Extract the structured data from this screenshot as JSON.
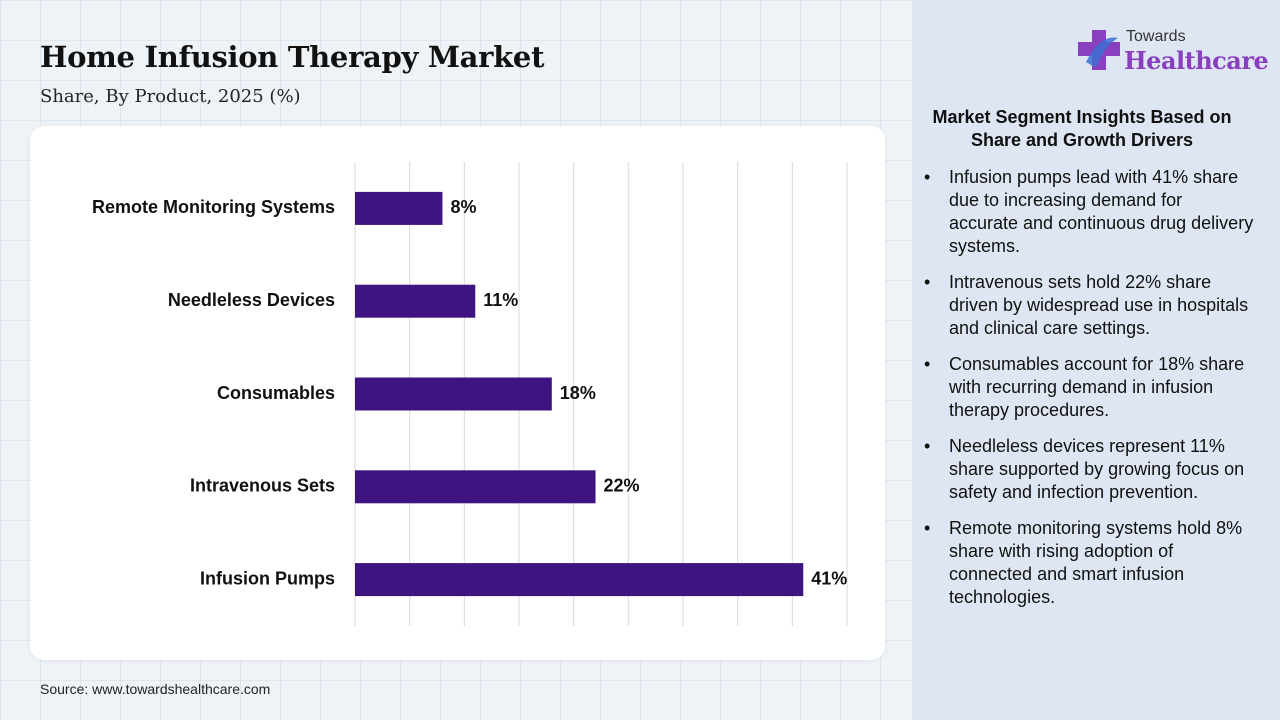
{
  "header": {
    "title": "Home Infusion Therapy Market",
    "subtitle": "Share, By Product, 2025 (%)"
  },
  "source": "Source: www.towardshealthcare.com",
  "brand": {
    "top": "Towards",
    "name": "Healthcare",
    "colors": {
      "primary": "#8a3fbf",
      "secondary": "#3b6fd4"
    }
  },
  "insights": {
    "title": "Market Segment Insights Based on Share and Growth Drivers",
    "bullet": "•",
    "items": [
      "Infusion pumps lead with 41% share due to increasing demand for accurate and continuous drug delivery systems.",
      "Intravenous sets hold 22% share driven by widespread use in hospitals and clinical care settings.",
      "Consumables account for 18% share with recurring demand in infusion therapy procedures.",
      "Needleless devices represent 11% share supported by growing focus on safety and infection prevention.",
      "Remote monitoring systems hold 8% share with rising adoption of connected and smart infusion technologies."
    ]
  },
  "chart_data": {
    "type": "bar",
    "orientation": "horizontal",
    "categories": [
      "Remote Monitoring Systems",
      "Needleless Devices",
      "Consumables",
      "Intravenous Sets",
      "Infusion Pumps"
    ],
    "values": [
      8,
      11,
      18,
      22,
      41
    ],
    "data_labels": [
      "8%",
      "11%",
      "18%",
      "22%",
      "41%"
    ],
    "xlim": [
      0,
      45
    ],
    "grid": true,
    "bar_color": "#3d1480",
    "grid_color": "#d9d9d9"
  }
}
